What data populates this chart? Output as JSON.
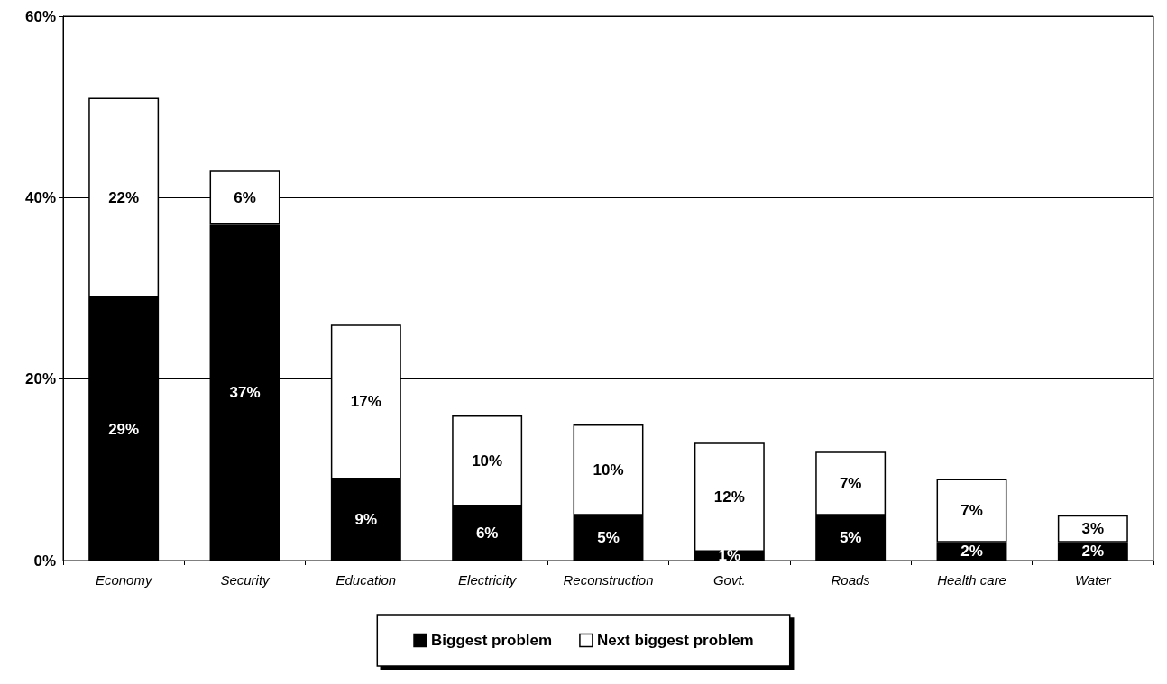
{
  "chart_data": {
    "type": "bar",
    "stacked": true,
    "categories": [
      "Economy",
      "Security",
      "Education",
      "Electricity",
      "Reconstruction",
      "Govt.",
      "Roads",
      "Health care",
      "Water"
    ],
    "series": [
      {
        "name": "Biggest problem",
        "color": "#000000",
        "values": [
          29,
          37,
          9,
          6,
          5,
          1,
          5,
          2,
          2
        ],
        "value_labels": [
          "29%",
          "37%",
          "9%",
          "6%",
          "5%",
          "1%",
          "5%",
          "2%",
          "2%"
        ]
      },
      {
        "name": "Next biggest problem",
        "color": "#ffffff",
        "values": [
          22,
          6,
          17,
          10,
          10,
          12,
          7,
          7,
          3
        ],
        "value_labels": [
          "22%",
          "6%",
          "17%",
          "10%",
          "10%",
          "12%",
          "7%",
          "7%",
          "3%"
        ]
      }
    ],
    "ylim": [
      0,
      60
    ],
    "yticks": [
      {
        "value": 0,
        "label": "0%"
      },
      {
        "value": 20,
        "label": "20%"
      },
      {
        "value": 40,
        "label": "40%"
      },
      {
        "value": 60,
        "label": "60%"
      }
    ],
    "grid": "y",
    "legend": "bottom"
  }
}
